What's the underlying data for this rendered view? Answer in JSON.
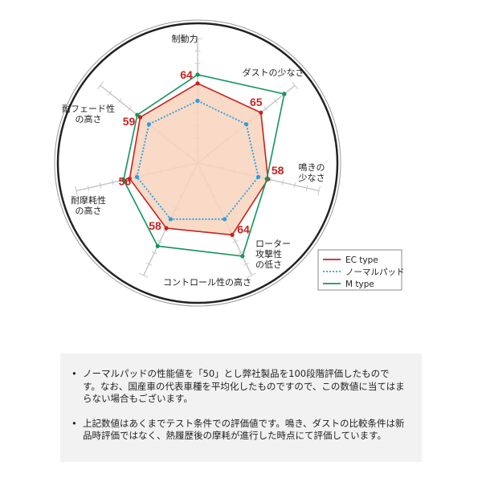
{
  "chart_data": {
    "type": "radar",
    "categories": [
      "制動力",
      "ダストの少なさ",
      "鳴きの\n少なさ",
      "ローター\n攻撃性\nの低さ",
      "コントロール性の高さ",
      "耐摩耗性\nの高さ",
      "耐フェード性\nの高さ"
    ],
    "range": [
      0,
      100
    ],
    "series": [
      {
        "name": "EC type",
        "values": [
          64,
          65,
          58,
          64,
          58,
          56,
          59
        ],
        "color": "#c8211e",
        "style": "solid",
        "fill": "#f8d3bd",
        "labels": true
      },
      {
        "name": "ノーマルパッド",
        "values": [
          50,
          50,
          50,
          50,
          50,
          50,
          50
        ],
        "color": "#2a9ee0",
        "style": "dotted"
      },
      {
        "name": "M type",
        "values": [
          71,
          89,
          57,
          83,
          74,
          61,
          62
        ],
        "color": "#12955a",
        "style": "solid"
      }
    ],
    "legend": "bottom-right"
  },
  "notes": [
    "ノーマルパッドの性能値を「50」とし弊社製品を100段階評価したものです。なお、国産車の代表車種を平均化したものですので、この数値に当てはまらない場合もございます。",
    "上記数値はあくまでテスト条件での評価値です。鳴き、ダストの比較条件は新品時評価ではなく、熱履歴後の摩耗が進行した時点にて評価しています。"
  ]
}
